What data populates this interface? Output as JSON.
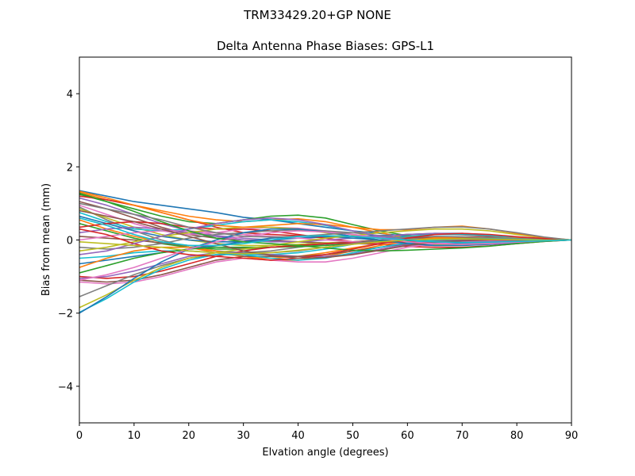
{
  "chart_data": {
    "type": "line",
    "suptitle": "TRM33429.20+GP  NONE",
    "title": "Delta Antenna Phase Biases: GPS-L1",
    "xlabel": "Elvation angle (degrees)",
    "ylabel": "Bias from mean (mm)",
    "xlim": [
      0,
      90
    ],
    "ylim": [
      -5,
      5
    ],
    "xticks": [
      0,
      10,
      20,
      30,
      40,
      50,
      60,
      70,
      80,
      90
    ],
    "yticks": [
      -4,
      -2,
      0,
      2,
      4
    ],
    "ytick_labels": [
      "−4",
      "−2",
      "0",
      "2",
      "4"
    ],
    "grid": false,
    "x": [
      0,
      5,
      10,
      15,
      20,
      25,
      30,
      35,
      40,
      45,
      50,
      55,
      60,
      65,
      70,
      75,
      80,
      85,
      90
    ],
    "series": [
      {
        "values": [
          1.35,
          1.2,
          1.05,
          0.95,
          0.85,
          0.75,
          0.62,
          0.55,
          0.45,
          0.35,
          0.25,
          0.18,
          0.1,
          0.05,
          0.02,
          0.0,
          -0.01,
          -0.01,
          0.0
        ]
      },
      {
        "values": [
          1.3,
          1.1,
          0.95,
          0.8,
          0.65,
          0.55,
          0.5,
          0.55,
          0.58,
          0.5,
          0.35,
          0.2,
          0.05,
          -0.05,
          -0.08,
          -0.07,
          -0.05,
          -0.02,
          0.0
        ]
      },
      {
        "values": [
          1.25,
          1.05,
          0.85,
          0.65,
          0.5,
          0.45,
          0.55,
          0.65,
          0.68,
          0.6,
          0.42,
          0.25,
          0.12,
          0.05,
          0.02,
          0.01,
          0.0,
          0.0,
          0.0
        ]
      },
      {
        "values": [
          1.2,
          1.1,
          0.95,
          0.75,
          0.55,
          0.35,
          0.2,
          0.15,
          0.12,
          0.1,
          0.1,
          0.12,
          0.15,
          0.16,
          0.14,
          0.1,
          0.06,
          0.02,
          0.0
        ]
      },
      {
        "values": [
          1.15,
          0.95,
          0.7,
          0.45,
          0.25,
          0.12,
          0.05,
          0.0,
          -0.05,
          -0.08,
          -0.1,
          -0.12,
          -0.14,
          -0.15,
          -0.14,
          -0.12,
          -0.08,
          -0.03,
          0.0
        ]
      },
      {
        "values": [
          1.05,
          0.85,
          0.6,
          0.35,
          0.15,
          0.05,
          0.0,
          -0.02,
          -0.05,
          -0.08,
          -0.1,
          -0.1,
          -0.09,
          -0.08,
          -0.06,
          -0.05,
          -0.03,
          -0.01,
          0.0
        ]
      },
      {
        "values": [
          0.95,
          0.7,
          0.45,
          0.25,
          0.15,
          0.2,
          0.3,
          0.35,
          0.32,
          0.25,
          0.15,
          0.08,
          0.05,
          0.06,
          0.07,
          0.06,
          0.04,
          0.02,
          0.0
        ]
      },
      {
        "values": [
          0.9,
          0.55,
          0.25,
          0.0,
          -0.2,
          -0.3,
          -0.35,
          -0.3,
          -0.2,
          -0.12,
          -0.05,
          0.0,
          0.02,
          0.03,
          0.03,
          0.02,
          0.01,
          0.0,
          0.0
        ]
      },
      {
        "values": [
          0.85,
          0.6,
          0.35,
          0.15,
          0.0,
          -0.1,
          -0.15,
          -0.15,
          -0.12,
          -0.08,
          -0.05,
          -0.03,
          -0.02,
          -0.02,
          -0.02,
          -0.02,
          -0.01,
          0.0,
          0.0
        ]
      },
      {
        "values": [
          0.75,
          0.5,
          0.3,
          0.25,
          0.3,
          0.4,
          0.5,
          0.55,
          0.5,
          0.4,
          0.25,
          0.1,
          0.0,
          -0.05,
          -0.06,
          -0.05,
          -0.03,
          -0.01,
          0.0
        ]
      },
      {
        "values": [
          0.65,
          0.45,
          0.25,
          0.1,
          0.0,
          -0.05,
          -0.05,
          0.0,
          0.05,
          0.08,
          0.1,
          0.12,
          0.15,
          0.18,
          0.18,
          0.14,
          0.08,
          0.03,
          0.0
        ]
      },
      {
        "values": [
          0.55,
          0.3,
          0.1,
          -0.05,
          -0.2,
          -0.35,
          -0.45,
          -0.5,
          -0.45,
          -0.35,
          -0.22,
          -0.1,
          0.0,
          0.05,
          0.06,
          0.05,
          0.03,
          0.01,
          0.0
        ]
      },
      {
        "values": [
          0.45,
          0.25,
          0.05,
          -0.1,
          -0.2,
          -0.25,
          -0.25,
          -0.2,
          -0.15,
          -0.1,
          -0.06,
          -0.03,
          -0.02,
          -0.02,
          -0.02,
          -0.02,
          -0.01,
          0.0,
          0.0
        ]
      },
      {
        "values": [
          0.35,
          0.45,
          0.5,
          0.45,
          0.35,
          0.3,
          0.3,
          0.25,
          0.15,
          0.05,
          -0.05,
          -0.12,
          -0.18,
          -0.2,
          -0.2,
          -0.16,
          -0.1,
          -0.04,
          0.0
        ]
      },
      {
        "values": [
          0.2,
          0.3,
          0.35,
          0.3,
          0.2,
          0.1,
          0.0,
          -0.05,
          -0.05,
          0.0,
          0.05,
          0.1,
          0.15,
          0.18,
          0.17,
          0.13,
          0.08,
          0.03,
          0.0
        ]
      },
      {
        "values": [
          0.1,
          0.05,
          0.0,
          -0.08,
          -0.15,
          -0.2,
          -0.22,
          -0.2,
          -0.15,
          -0.1,
          -0.05,
          0.0,
          0.05,
          0.07,
          0.07,
          0.05,
          0.03,
          0.01,
          0.0
        ]
      },
      {
        "values": [
          0.0,
          0.1,
          0.2,
          0.25,
          0.25,
          0.2,
          0.15,
          0.1,
          0.05,
          0.0,
          -0.05,
          -0.08,
          -0.1,
          -0.1,
          -0.09,
          -0.07,
          -0.04,
          -0.02,
          0.0
        ]
      },
      {
        "values": [
          -0.2,
          -0.25,
          -0.2,
          -0.1,
          0.05,
          0.15,
          0.2,
          0.25,
          0.28,
          0.25,
          0.2,
          0.12,
          0.05,
          0.0,
          -0.02,
          -0.02,
          -0.01,
          0.0,
          0.0
        ]
      },
      {
        "values": [
          -0.3,
          -0.2,
          -0.05,
          0.1,
          0.2,
          0.3,
          0.35,
          0.35,
          0.3,
          0.2,
          0.1,
          0.0,
          -0.08,
          -0.12,
          -0.12,
          -0.1,
          -0.06,
          -0.02,
          0.0
        ]
      },
      {
        "values": [
          -0.5,
          -0.45,
          -0.35,
          -0.3,
          -0.3,
          -0.35,
          -0.4,
          -0.4,
          -0.35,
          -0.25,
          -0.12,
          0.0,
          0.1,
          0.15,
          0.15,
          0.12,
          0.07,
          0.03,
          0.0
        ]
      },
      {
        "values": [
          -0.65,
          -0.55,
          -0.45,
          -0.35,
          -0.25,
          -0.15,
          -0.05,
          0.05,
          0.1,
          0.1,
          0.05,
          0.0,
          -0.05,
          -0.08,
          -0.08,
          -0.06,
          -0.04,
          -0.02,
          0.0
        ]
      },
      {
        "values": [
          -0.75,
          -0.5,
          -0.3,
          -0.2,
          -0.2,
          -0.3,
          -0.45,
          -0.55,
          -0.55,
          -0.45,
          -0.3,
          -0.15,
          -0.02,
          0.06,
          0.08,
          0.07,
          0.05,
          0.02,
          0.0
        ]
      },
      {
        "values": [
          -0.9,
          -0.7,
          -0.5,
          -0.35,
          -0.25,
          -0.2,
          -0.2,
          -0.2,
          -0.18,
          -0.15,
          -0.1,
          -0.05,
          -0.02,
          0.0,
          0.01,
          0.01,
          0.0,
          0.0,
          0.0
        ]
      },
      {
        "values": [
          -1.0,
          -1.05,
          -1.0,
          -0.85,
          -0.65,
          -0.45,
          -0.3,
          -0.2,
          -0.15,
          -0.1,
          -0.08,
          -0.06,
          -0.05,
          -0.04,
          -0.03,
          -0.02,
          -0.01,
          0.0,
          0.0
        ]
      },
      {
        "values": [
          -1.05,
          -1.0,
          -0.85,
          -0.65,
          -0.45,
          -0.35,
          -0.35,
          -0.4,
          -0.45,
          -0.45,
          -0.38,
          -0.25,
          -0.12,
          -0.04,
          0.0,
          0.01,
          0.01,
          0.0,
          0.0
        ]
      },
      {
        "values": [
          -1.1,
          -1.15,
          -1.1,
          -0.95,
          -0.75,
          -0.55,
          -0.45,
          -0.45,
          -0.45,
          -0.4,
          -0.3,
          -0.2,
          -0.1,
          -0.05,
          -0.02,
          -0.01,
          0.0,
          0.0,
          0.0
        ]
      },
      {
        "values": [
          -1.15,
          -1.2,
          -1.15,
          -1.0,
          -0.8,
          -0.6,
          -0.5,
          -0.55,
          -0.6,
          -0.6,
          -0.5,
          -0.35,
          -0.2,
          -0.1,
          -0.05,
          -0.02,
          -0.01,
          0.0,
          0.0
        ]
      },
      {
        "values": [
          -1.55,
          -1.25,
          -0.95,
          -0.7,
          -0.5,
          -0.4,
          -0.35,
          -0.35,
          -0.3,
          -0.2,
          -0.1,
          0.0,
          0.08,
          0.1,
          0.09,
          0.07,
          0.04,
          0.02,
          0.0
        ]
      },
      {
        "values": [
          -1.85,
          -1.5,
          -1.1,
          -0.75,
          -0.5,
          -0.35,
          -0.25,
          -0.15,
          -0.05,
          0.05,
          0.12,
          0.2,
          0.25,
          0.3,
          0.3,
          0.25,
          0.15,
          0.06,
          0.0
        ]
      },
      {
        "values": [
          -1.98,
          -1.6,
          -1.15,
          -0.8,
          -0.55,
          -0.4,
          -0.4,
          -0.5,
          -0.55,
          -0.5,
          -0.35,
          -0.2,
          -0.08,
          0.0,
          0.03,
          0.03,
          0.02,
          0.01,
          0.0
        ]
      },
      {
        "values": [
          -2.0,
          -1.55,
          -1.05,
          -0.6,
          -0.25,
          0.0,
          0.2,
          0.3,
          0.3,
          0.22,
          0.1,
          0.0,
          -0.1,
          -0.15,
          -0.15,
          -0.12,
          -0.07,
          -0.03,
          0.0
        ]
      },
      {
        "values": [
          1.33,
          1.15,
          0.95,
          0.75,
          0.55,
          0.4,
          0.35,
          0.4,
          0.45,
          0.42,
          0.35,
          0.28,
          0.28,
          0.35,
          0.38,
          0.3,
          0.18,
          0.07,
          0.0
        ]
      },
      {
        "values": [
          1.28,
          1.05,
          0.78,
          0.5,
          0.25,
          0.05,
          -0.05,
          -0.1,
          -0.15,
          -0.22,
          -0.28,
          -0.3,
          -0.28,
          -0.25,
          -0.22,
          -0.17,
          -0.1,
          -0.04,
          0.0
        ]
      },
      {
        "values": [
          0.3,
          0.15,
          -0.1,
          -0.3,
          -0.4,
          -0.45,
          -0.5,
          -0.55,
          -0.5,
          -0.4,
          -0.25,
          -0.1,
          0.05,
          0.15,
          0.18,
          0.15,
          0.09,
          0.04,
          0.0
        ]
      },
      {
        "values": [
          -0.4,
          -0.3,
          -0.1,
          0.1,
          0.3,
          0.45,
          0.55,
          0.6,
          0.55,
          0.42,
          0.25,
          0.1,
          0.0,
          -0.05,
          -0.06,
          -0.05,
          -0.03,
          -0.01,
          0.0
        ]
      },
      {
        "values": [
          0.8,
          0.65,
          0.5,
          0.3,
          0.1,
          -0.1,
          -0.3,
          -0.42,
          -0.5,
          -0.48,
          -0.4,
          -0.28,
          -0.15,
          -0.06,
          -0.02,
          0.0,
          0.0,
          0.0,
          0.0
        ]
      },
      {
        "values": [
          -1.1,
          -0.95,
          -0.75,
          -0.5,
          -0.25,
          -0.05,
          0.1,
          0.2,
          0.25,
          0.22,
          0.15,
          0.05,
          -0.05,
          -0.1,
          -0.12,
          -0.1,
          -0.06,
          -0.02,
          0.0
        ]
      },
      {
        "values": [
          1.0,
          0.85,
          0.7,
          0.55,
          0.35,
          0.2,
          0.1,
          0.08,
          0.1,
          0.15,
          0.2,
          0.25,
          0.3,
          0.35,
          0.36,
          0.3,
          0.2,
          0.08,
          0.0
        ]
      },
      {
        "values": [
          -0.05,
          -0.1,
          -0.15,
          -0.2,
          -0.3,
          -0.35,
          -0.38,
          -0.35,
          -0.28,
          -0.2,
          -0.12,
          -0.05,
          0.0,
          0.02,
          0.03,
          0.02,
          0.01,
          0.0,
          0.0
        ]
      },
      {
        "values": [
          0.6,
          0.4,
          0.15,
          -0.05,
          -0.15,
          -0.15,
          -0.1,
          0.0,
          0.1,
          0.12,
          0.1,
          0.05,
          0.0,
          -0.05,
          -0.07,
          -0.06,
          -0.04,
          -0.02,
          0.0
        ]
      }
    ],
    "colors": [
      "#1f77b4",
      "#ff7f0e",
      "#2ca02c",
      "#d62728",
      "#9467bd",
      "#8c564b",
      "#e377c2",
      "#7f7f7f",
      "#bcbd22",
      "#17becf"
    ]
  }
}
